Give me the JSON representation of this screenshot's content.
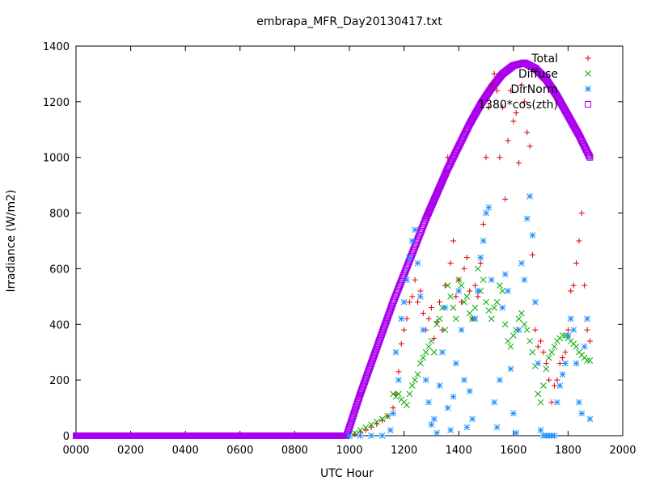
{
  "chart_data": {
    "type": "scatter",
    "title": "embrapa_MFR_Day20130417.txt",
    "xlabel": "UTC Hour",
    "ylabel": "Irradiance (W/m2)",
    "xlim": [
      0,
      2000
    ],
    "ylim": [
      0,
      1400
    ],
    "x_ticks": [
      "0000",
      "0200",
      "0400",
      "0600",
      "0800",
      "1000",
      "1200",
      "1400",
      "1600",
      "1800",
      "2000"
    ],
    "y_ticks": [
      "0",
      "200",
      "400",
      "600",
      "800",
      "1000",
      "1200",
      "1400"
    ],
    "legend_position": "top-right",
    "series": [
      {
        "name": "Total",
        "marker": "plus",
        "color": "#dd0000",
        "x": [
          1000,
          1020,
          1040,
          1060,
          1080,
          1100,
          1120,
          1140,
          1160,
          1170,
          1180,
          1190,
          1200,
          1210,
          1220,
          1230,
          1240,
          1250,
          1260,
          1270,
          1280,
          1290,
          1300,
          1310,
          1320,
          1330,
          1340,
          1350,
          1360,
          1370,
          1380,
          1390,
          1400,
          1410,
          1420,
          1430,
          1440,
          1450,
          1460,
          1470,
          1480,
          1490,
          1500,
          1510,
          1520,
          1530,
          1540,
          1550,
          1560,
          1570,
          1580,
          1590,
          1600,
          1610,
          1620,
          1630,
          1640,
          1650,
          1660,
          1670,
          1680,
          1690,
          1700,
          1710,
          1720,
          1730,
          1740,
          1750,
          1760,
          1770,
          1780,
          1790,
          1800,
          1810,
          1820,
          1830,
          1840,
          1850,
          1860,
          1870,
          1880
        ],
        "y": [
          0,
          5,
          12,
          20,
          30,
          42,
          55,
          70,
          100,
          150,
          230,
          330,
          380,
          420,
          480,
          500,
          560,
          480,
          520,
          440,
          380,
          420,
          460,
          350,
          410,
          480,
          380,
          540,
          1000,
          620,
          700,
          500,
          560,
          480,
          600,
          640,
          520,
          420,
          540,
          500,
          620,
          760,
          1000,
          1180,
          1260,
          1300,
          1240,
          1000,
          1180,
          850,
          1060,
          1240,
          1130,
          1160,
          980,
          1260,
          1200,
          1090,
          1040,
          650,
          380,
          320,
          340,
          300,
          260,
          200,
          120,
          180,
          200,
          260,
          280,
          300,
          380,
          520,
          540,
          620,
          700,
          800,
          540,
          380,
          340
        ]
      },
      {
        "name": "Diffuse",
        "marker": "cross",
        "color": "#00aa00",
        "x": [
          1000,
          1020,
          1040,
          1060,
          1080,
          1100,
          1120,
          1140,
          1160,
          1170,
          1180,
          1190,
          1200,
          1210,
          1220,
          1230,
          1240,
          1250,
          1260,
          1270,
          1280,
          1290,
          1300,
          1310,
          1320,
          1330,
          1340,
          1350,
          1360,
          1370,
          1380,
          1390,
          1400,
          1410,
          1420,
          1430,
          1440,
          1450,
          1460,
          1470,
          1480,
          1490,
          1500,
          1510,
          1520,
          1530,
          1540,
          1550,
          1560,
          1570,
          1580,
          1590,
          1600,
          1610,
          1620,
          1630,
          1640,
          1650,
          1660,
          1670,
          1680,
          1690,
          1700,
          1710,
          1720,
          1730,
          1740,
          1750,
          1760,
          1770,
          1780,
          1790,
          1800,
          1810,
          1820,
          1830,
          1840,
          1850,
          1860,
          1870,
          1880
        ],
        "y": [
          0,
          10,
          20,
          30,
          40,
          50,
          60,
          70,
          150,
          140,
          150,
          130,
          120,
          110,
          150,
          180,
          200,
          220,
          260,
          280,
          300,
          320,
          340,
          300,
          400,
          420,
          460,
          380,
          540,
          500,
          460,
          420,
          560,
          540,
          480,
          500,
          440,
          420,
          460,
          600,
          520,
          560,
          480,
          450,
          420,
          460,
          480,
          540,
          520,
          400,
          340,
          320,
          360,
          380,
          420,
          440,
          400,
          380,
          340,
          300,
          250,
          150,
          120,
          180,
          240,
          280,
          300,
          320,
          340,
          350,
          360,
          360,
          350,
          340,
          330,
          320,
          300,
          290,
          280,
          270,
          270
        ]
      },
      {
        "name": "DirNorm",
        "marker": "star",
        "color": "#1e90ff",
        "x": [
          1000,
          1040,
          1080,
          1120,
          1150,
          1160,
          1170,
          1180,
          1190,
          1200,
          1210,
          1220,
          1230,
          1240,
          1250,
          1260,
          1270,
          1280,
          1290,
          1300,
          1310,
          1320,
          1330,
          1340,
          1350,
          1360,
          1370,
          1380,
          1390,
          1400,
          1410,
          1420,
          1430,
          1440,
          1450,
          1460,
          1470,
          1480,
          1490,
          1500,
          1510,
          1520,
          1530,
          1540,
          1550,
          1560,
          1570,
          1580,
          1590,
          1600,
          1610,
          1620,
          1630,
          1640,
          1650,
          1660,
          1670,
          1680,
          1690,
          1700,
          1710,
          1720,
          1730,
          1740,
          1750,
          1760,
          1770,
          1780,
          1790,
          1800,
          1810,
          1820,
          1830,
          1840,
          1850,
          1860,
          1870,
          1880
        ],
        "y": [
          0,
          0,
          0,
          0,
          20,
          80,
          300,
          200,
          420,
          480,
          560,
          640,
          700,
          740,
          620,
          500,
          380,
          200,
          120,
          40,
          60,
          10,
          180,
          300,
          460,
          100,
          20,
          140,
          260,
          520,
          380,
          200,
          30,
          160,
          60,
          420,
          520,
          640,
          700,
          800,
          820,
          560,
          120,
          30,
          200,
          460,
          580,
          520,
          240,
          80,
          10,
          380,
          620,
          560,
          780,
          860,
          720,
          480,
          260,
          20,
          0,
          0,
          0,
          0,
          0,
          120,
          180,
          220,
          260,
          360,
          420,
          380,
          260,
          120,
          80,
          320,
          420,
          60
        ]
      },
      {
        "name": "1380*cos(zth)",
        "marker": "square",
        "color": "#aa00ee",
        "x": [
          0,
          200,
          400,
          600,
          800,
          990,
          1000,
          1040,
          1080,
          1120,
          1160,
          1200,
          1240,
          1280,
          1320,
          1360,
          1400,
          1440,
          1480,
          1520,
          1560,
          1600,
          1640,
          1680,
          1720,
          1760,
          1800,
          1840,
          1880
        ],
        "y": [
          0,
          0,
          0,
          0,
          0,
          0,
          30,
          150,
          260,
          370,
          480,
          580,
          680,
          780,
          870,
          960,
          1040,
          1120,
          1190,
          1250,
          1300,
          1330,
          1340,
          1320,
          1280,
          1220,
          1150,
          1080,
          1000
        ]
      }
    ]
  }
}
